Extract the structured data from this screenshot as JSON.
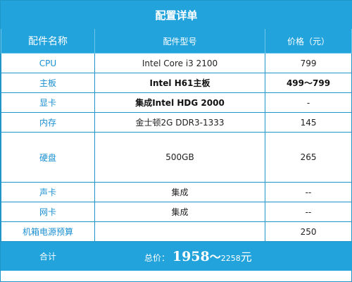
{
  "title": "配置详单",
  "headers": [
    "配件名称",
    "配件型号",
    "价格（元）"
  ],
  "rows": [
    {
      "name": "CPU",
      "model": "Intel Core i3 2100",
      "price": "799"
    },
    {
      "name": "主板",
      "model": "Intel H61主板",
      "price": "499～799"
    },
    {
      "name": "显卡",
      "model": "集成Intel HDG 2000",
      "price": "-"
    },
    {
      "name": "内存",
      "model": "金士顿2G DDR3-1333",
      "price": "145"
    },
    {
      "name": "硬盘",
      "model": "500GB",
      "price": "265"
    },
    {
      "name": "声卡",
      "model": "集成",
      "price": "--"
    },
    {
      "name": "网卡",
      "model": "集成",
      "price": "--"
    },
    {
      "name": "机箱电源预算",
      "model": "",
      "price": "250"
    }
  ],
  "total": {
    "label": "合计",
    "prefix": "总价：",
    "low": "1958",
    "tilde": "～",
    "high": "2258",
    "unit": "元"
  },
  "colors": {
    "header_bg": "#22a3dc",
    "border": "#1f95c8",
    "name_text": "#1a8fd0"
  }
}
